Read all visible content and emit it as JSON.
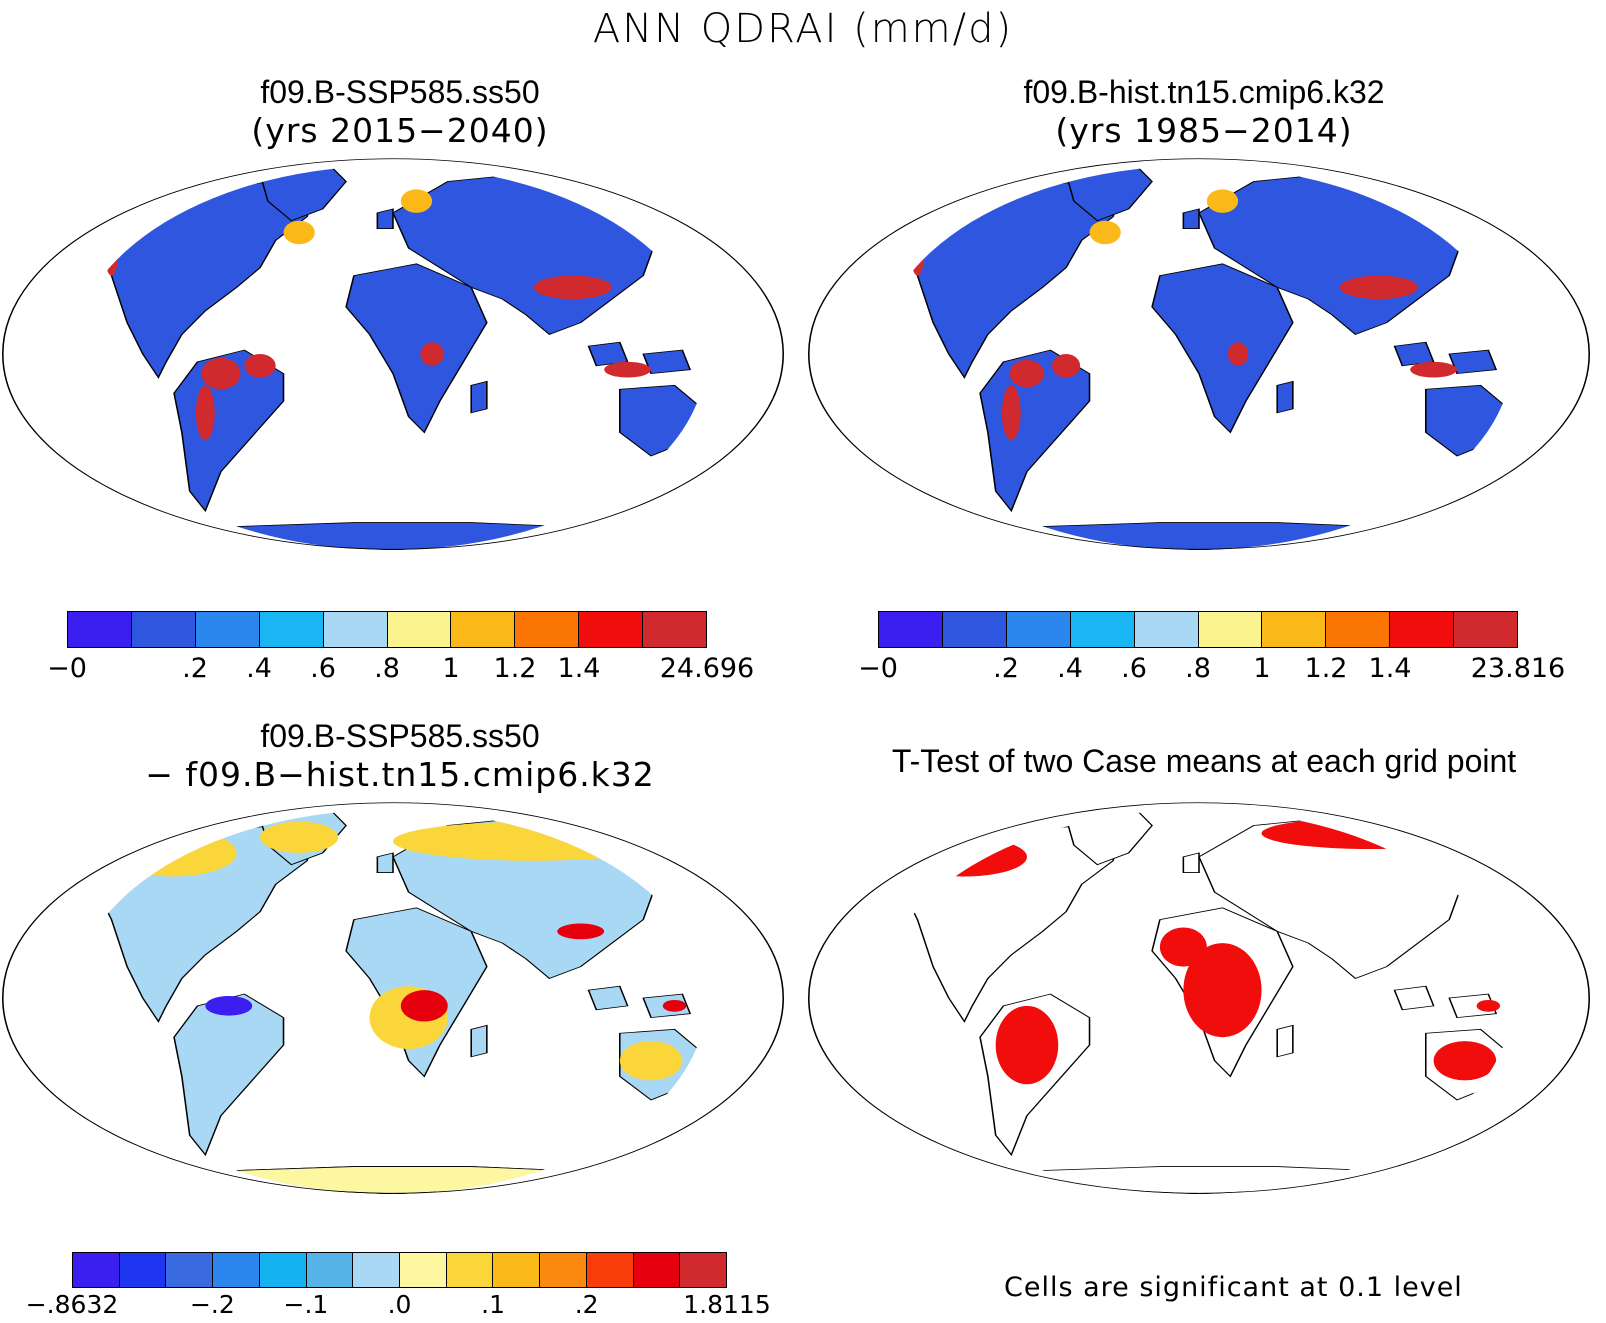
{
  "figure_title": "ANN QDRAI (mm/d)",
  "panels": [
    {
      "id": "ssp585",
      "title_line1": "f09.B-SSP585.ss50",
      "title_line2": "(yrs 2015−2040)"
    },
    {
      "id": "hist",
      "title_line1": "f09.B-hist.tn15.cmip6.k32",
      "title_line2": "(yrs 1985−2014)"
    },
    {
      "id": "diff",
      "title_line1": "f09.B-SSP585.ss50",
      "title_line2": "− f09.B−hist.tn15.cmip6.k32"
    },
    {
      "id": "ttest",
      "title_line1": "T-Test of two Case means at each grid point",
      "note": "Cells are significant at 0.1 level"
    }
  ],
  "colorbars": {
    "ssp585": {
      "colors": [
        "#3b1ff0",
        "#2f56de",
        "#2b86ee",
        "#1ab6f3",
        "#a8d8f4",
        "#fbf38e",
        "#fbb919",
        "#fb7505",
        "#f20d0d",
        "#d12a2e"
      ],
      "ticks": [
        "−0",
        "",
        ".2",
        ".4",
        ".6",
        ".8",
        "1",
        "1.2",
        "1.4",
        "",
        "24.696"
      ]
    },
    "hist": {
      "colors": [
        "#3b1ff0",
        "#2f56de",
        "#2b86ee",
        "#1ab6f3",
        "#a8d8f4",
        "#fbf38e",
        "#fbb919",
        "#fb7505",
        "#f20d0d",
        "#d12a2e"
      ],
      "ticks": [
        "−0",
        "",
        ".2",
        ".4",
        ".6",
        ".8",
        "1",
        "1.2",
        "1.4",
        "",
        "23.816"
      ]
    },
    "diff": {
      "colors": [
        "#3b1ff0",
        "#1f36f0",
        "#3a6ae0",
        "#2b86ee",
        "#14b2f0",
        "#56b4e9",
        "#a8d8f4",
        "#fdf7a2",
        "#fbd63a",
        "#fbb919",
        "#fb8a10",
        "#f83d0b",
        "#e6000d",
        "#d12a2e"
      ],
      "ticks": [
        "−.8632",
        "",
        "",
        "−.2",
        "",
        "−.1",
        "",
        ".0",
        "",
        ".1",
        "",
        ".2",
        "",
        "",
        "1.8115"
      ]
    }
  },
  "map_colors": {
    "ocean": "#ffffff",
    "coast": "#000000",
    "base_low": "#2f56de",
    "wet_high": "#d12a2e",
    "diff_base": "#a8d8f4",
    "diff_pos": "#fbd63a",
    "diff_neg": "#3b1ff0",
    "antarctica_diff": "#fdf7a2",
    "significant": "#f20d0d"
  }
}
